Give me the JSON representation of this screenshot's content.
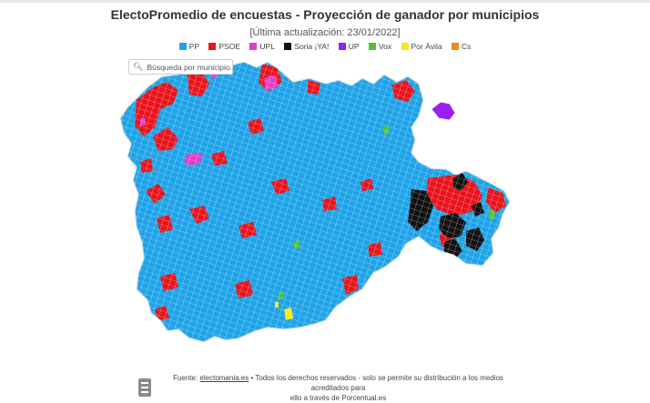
{
  "header": {
    "title": "ElectoPromedio de encuestas - Proyección de ganador por municipios",
    "subtitle": "[Última actualización: 23/01/2022]"
  },
  "legend": [
    {
      "label": "PP",
      "color": "#1fa3e8"
    },
    {
      "label": "PSOE",
      "color": "#e8141c"
    },
    {
      "label": "UPL",
      "color": "#e23fc7"
    },
    {
      "label": "Soria ¡YA!",
      "color": "#111111"
    },
    {
      "label": "UP",
      "color": "#9b1ff2"
    },
    {
      "label": "Vox",
      "color": "#52c234"
    },
    {
      "label": "Por Ávila",
      "color": "#f5ea16"
    },
    {
      "label": "Cs",
      "color": "#f28a1f"
    }
  ],
  "search": {
    "placeholder": "Búsqueda por municipio..."
  },
  "map": {
    "region": "Castilla y León",
    "base_color": "#1fa3e8",
    "border_color": "#ffffff"
  },
  "footer": {
    "prefix": "Fuente: ",
    "link": "electomania.es",
    "line1_rest": " • Todos los derechos reservados - solo se permite su distribución a los medios acreditados para",
    "line2": "ello a través de Porcentual.es"
  }
}
